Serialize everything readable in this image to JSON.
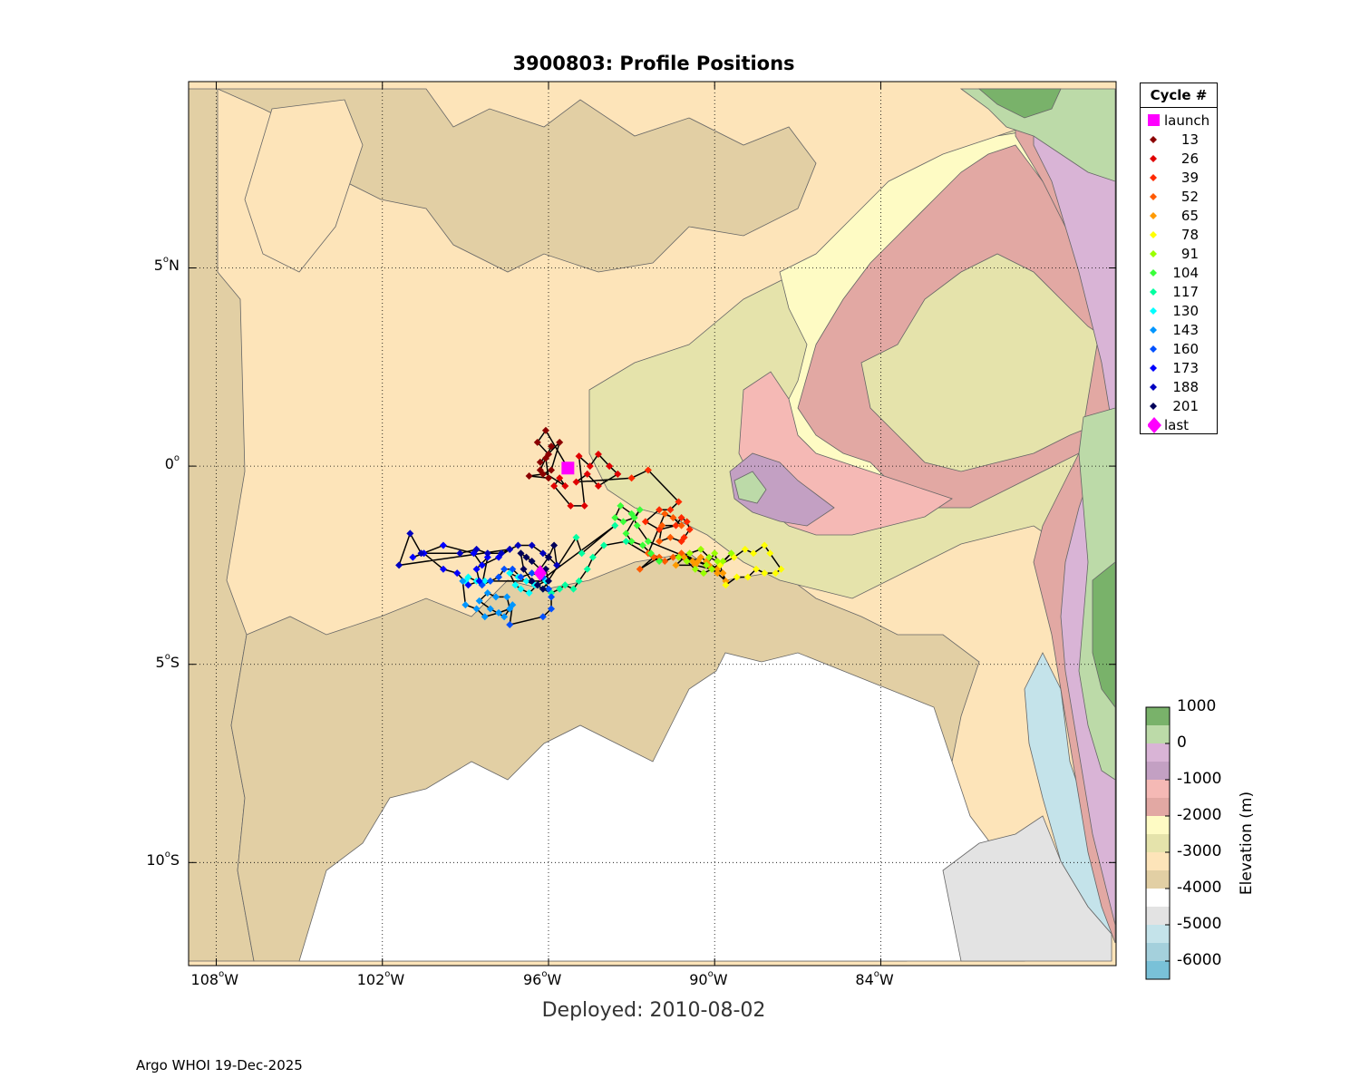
{
  "title": "3900803: Profile Positions",
  "xlabel": "Deployed: 2010-08-02",
  "footer": "Argo WHOI 19-Dec-2025",
  "axes": {
    "lon_range": [
      -109,
      -75.5
    ],
    "lat_range": [
      -12.6,
      9.7
    ],
    "x_ticks": [
      {
        "value": -108,
        "deg": "108",
        "hemi": "W"
      },
      {
        "value": -102,
        "deg": "102",
        "hemi": "W"
      },
      {
        "value": -96,
        "deg": "96",
        "hemi": "W"
      },
      {
        "value": -90,
        "deg": "90",
        "hemi": "W"
      },
      {
        "value": -84,
        "deg": "84",
        "hemi": "W"
      }
    ],
    "y_ticks": [
      {
        "value": 5,
        "deg": "5",
        "hemi": "N"
      },
      {
        "value": 0,
        "deg": "0",
        "hemi": ""
      },
      {
        "value": -5,
        "deg": "5",
        "hemi": "S"
      },
      {
        "value": -10,
        "deg": "10",
        "hemi": "S"
      }
    ],
    "grid": "dotted"
  },
  "legend": {
    "title": "Cycle #",
    "launch_label": "launch",
    "last_label": "last",
    "launch_color": "#ff00ff",
    "last_color": "#ff00ff",
    "cycles": [
      {
        "label": "13",
        "color": "#8b0000"
      },
      {
        "label": "26",
        "color": "#e00000"
      },
      {
        "label": "39",
        "color": "#ff2a00"
      },
      {
        "label": "52",
        "color": "#ff5a00"
      },
      {
        "label": "65",
        "color": "#ff9a00"
      },
      {
        "label": "78",
        "color": "#ffff00"
      },
      {
        "label": "91",
        "color": "#9aff00"
      },
      {
        "label": "104",
        "color": "#3aff3a"
      },
      {
        "label": "117",
        "color": "#00ffa0"
      },
      {
        "label": "130",
        "color": "#00ffff"
      },
      {
        "label": "143",
        "color": "#0096ff"
      },
      {
        "label": "160",
        "color": "#0050ff"
      },
      {
        "label": "173",
        "color": "#0000ff"
      },
      {
        "label": "188",
        "color": "#0000c0"
      },
      {
        "label": "201",
        "color": "#00005a"
      }
    ]
  },
  "colorbar": {
    "label": "Elevation (m)",
    "tick_labels": [
      "1000",
      "0",
      "-1000",
      "-2000",
      "-3000",
      "-4000",
      "-5000",
      "-6000"
    ],
    "levels": [
      {
        "from": 500,
        "to": 1000,
        "color": "#79b26a"
      },
      {
        "from": 0,
        "to": 500,
        "color": "#bcdaa8"
      },
      {
        "from": -500,
        "to": 0,
        "color": "#d9b4d6"
      },
      {
        "from": -1000,
        "to": -500,
        "color": "#c3a0c3"
      },
      {
        "from": -1500,
        "to": -1000,
        "color": "#f5b9b5"
      },
      {
        "from": -2000,
        "to": -1500,
        "color": "#e2a8a3"
      },
      {
        "from": -2500,
        "to": -2000,
        "color": "#fefbc4"
      },
      {
        "from": -3000,
        "to": -2500,
        "color": "#e5e3ab"
      },
      {
        "from": -3500,
        "to": -3000,
        "color": "#fde4b9"
      },
      {
        "from": -4000,
        "to": -3500,
        "color": "#e2cfa4"
      },
      {
        "from": -4500,
        "to": -4000,
        "color": "#ffffff"
      },
      {
        "from": -5000,
        "to": -4500,
        "color": "#e3e3e3"
      },
      {
        "from": -5500,
        "to": -5000,
        "color": "#c4e3ea"
      },
      {
        "from": -6000,
        "to": -5500,
        "color": "#a4d0dc"
      },
      {
        "from": -6500,
        "to": -6000,
        "color": "#79c1d8"
      }
    ]
  },
  "launch": {
    "lon": -95.3,
    "lat": -0.05
  },
  "last": {
    "lon": -96.3,
    "lat": -2.7
  },
  "track_color": "#000000",
  "chart_data": {
    "type": "scatter",
    "title": "3900803: Profile Positions",
    "xlabel": "Deployed: 2010-08-02",
    "ylabel": "",
    "xlim": [
      -109,
      -75.5
    ],
    "ylim": [
      -12.6,
      9.7
    ],
    "series": [
      {
        "name": "13",
        "points": [
          [
            -95.3,
            -0.05
          ],
          [
            -96.1,
            0.9
          ],
          [
            -96.4,
            0.6
          ],
          [
            -96.0,
            0.3
          ],
          [
            -96.3,
            0.1
          ],
          [
            -95.6,
            0.6
          ],
          [
            -95.9,
            -0.1
          ],
          [
            -96.2,
            -0.2
          ],
          [
            -96.7,
            -0.25
          ],
          [
            -96.0,
            -0.3
          ],
          [
            -96.1,
            0.2
          ],
          [
            -95.9,
            0.5
          ],
          [
            -96.3,
            -0.1
          ]
        ]
      },
      {
        "name": "26",
        "points": [
          [
            -95.4,
            -0.5
          ],
          [
            -95.6,
            -0.3
          ],
          [
            -95.8,
            -0.5
          ],
          [
            -95.2,
            -1.0
          ],
          [
            -94.7,
            -1.0
          ],
          [
            -94.9,
            0.25
          ],
          [
            -94.5,
            0.0
          ],
          [
            -94.2,
            0.3
          ],
          [
            -93.8,
            0.0
          ],
          [
            -93.5,
            -0.2
          ],
          [
            -94.2,
            -0.5
          ],
          [
            -94.6,
            -0.2
          ],
          [
            -95.0,
            -0.4
          ]
        ]
      },
      {
        "name": "39",
        "points": [
          [
            -93.0,
            -0.3
          ],
          [
            -92.4,
            -0.1
          ],
          [
            -91.3,
            -0.9
          ],
          [
            -91.6,
            -1.1
          ],
          [
            -92.0,
            -1.1
          ],
          [
            -92.5,
            -1.4
          ],
          [
            -92.0,
            -1.6
          ],
          [
            -91.4,
            -1.5
          ],
          [
            -91.2,
            -1.3
          ],
          [
            -91.0,
            -1.4
          ],
          [
            -90.9,
            -1.6
          ],
          [
            -91.1,
            -1.8
          ],
          [
            -91.2,
            -1.9
          ]
        ]
      },
      {
        "name": "52",
        "points": [
          [
            -91.6,
            -1.8
          ],
          [
            -92.0,
            -1.9
          ],
          [
            -91.9,
            -1.5
          ],
          [
            -91.2,
            -1.5
          ],
          [
            -91.5,
            -1.3
          ],
          [
            -91.8,
            -1.2
          ],
          [
            -92.4,
            -2.2
          ],
          [
            -92.0,
            -2.3
          ],
          [
            -92.7,
            -2.6
          ],
          [
            -92.2,
            -2.3
          ],
          [
            -91.8,
            -2.4
          ],
          [
            -91.5,
            -2.3
          ],
          [
            -91.2,
            -2.2
          ]
        ]
      },
      {
        "name": "65",
        "points": [
          [
            -90.6,
            -2.4
          ],
          [
            -90.2,
            -2.5
          ],
          [
            -89.9,
            -2.7
          ],
          [
            -89.6,
            -2.9
          ],
          [
            -89.7,
            -2.7
          ],
          [
            -89.9,
            -2.6
          ],
          [
            -90.3,
            -2.4
          ],
          [
            -90.5,
            -2.3
          ],
          [
            -90.8,
            -2.4
          ],
          [
            -91.1,
            -2.3
          ],
          [
            -91.4,
            -2.5
          ],
          [
            -90.7,
            -2.5
          ],
          [
            -90.1,
            -2.6
          ]
        ]
      },
      {
        "name": "78",
        "points": [
          [
            -89.3,
            -2.3
          ],
          [
            -88.9,
            -2.1
          ],
          [
            -88.6,
            -2.2
          ],
          [
            -88.2,
            -2.0
          ],
          [
            -88.0,
            -2.2
          ],
          [
            -87.6,
            -2.6
          ],
          [
            -87.8,
            -2.7
          ],
          [
            -88.2,
            -2.7
          ],
          [
            -88.5,
            -2.6
          ],
          [
            -88.8,
            -2.8
          ],
          [
            -89.2,
            -2.8
          ],
          [
            -89.6,
            -3.0
          ],
          [
            -89.8,
            -2.5
          ]
        ]
      },
      {
        "name": "91",
        "points": [
          [
            -89.4,
            -2.2
          ],
          [
            -89.7,
            -2.4
          ],
          [
            -90.1,
            -2.6
          ],
          [
            -90.4,
            -2.7
          ],
          [
            -90.7,
            -2.6
          ],
          [
            -91.0,
            -2.4
          ],
          [
            -91.3,
            -2.3
          ],
          [
            -90.9,
            -2.2
          ],
          [
            -90.5,
            -2.1
          ],
          [
            -90.2,
            -2.3
          ],
          [
            -89.9,
            -2.4
          ],
          [
            -90.0,
            -2.2
          ],
          [
            -90.3,
            -2.5
          ]
        ]
      },
      {
        "name": "104",
        "points": [
          [
            -92.4,
            -1.9
          ],
          [
            -92.8,
            -1.5
          ],
          [
            -93.0,
            -1.2
          ],
          [
            -93.4,
            -1.0
          ],
          [
            -93.6,
            -1.3
          ],
          [
            -93.3,
            -1.4
          ],
          [
            -92.9,
            -1.3
          ],
          [
            -92.7,
            -1.1
          ],
          [
            -93.2,
            -1.7
          ],
          [
            -93.0,
            -1.9
          ],
          [
            -92.6,
            -2.0
          ],
          [
            -92.3,
            -2.2
          ],
          [
            -92.0,
            -2.4
          ]
        ]
      },
      {
        "name": "117",
        "points": [
          [
            -93.2,
            -1.9
          ],
          [
            -94.0,
            -2.0
          ],
          [
            -94.4,
            -2.3
          ],
          [
            -94.6,
            -2.6
          ],
          [
            -94.9,
            -2.9
          ],
          [
            -95.1,
            -3.1
          ],
          [
            -95.4,
            -3.0
          ],
          [
            -95.6,
            -3.1
          ],
          [
            -95.9,
            -3.2
          ],
          [
            -96.2,
            -3.1
          ],
          [
            -95.0,
            -1.8
          ],
          [
            -94.8,
            -2.2
          ],
          [
            -93.6,
            -1.5
          ]
        ]
      },
      {
        "name": "130",
        "points": [
          [
            -96.5,
            -3.0
          ],
          [
            -96.8,
            -2.9
          ],
          [
            -97.1,
            -2.8
          ],
          [
            -97.4,
            -2.7
          ],
          [
            -97.2,
            -3.0
          ],
          [
            -97.0,
            -3.1
          ],
          [
            -96.7,
            -3.2
          ],
          [
            -96.4,
            -3.0
          ],
          [
            -96.1,
            -2.9
          ],
          [
            -98.3,
            -2.9
          ],
          [
            -98.6,
            -2.9
          ],
          [
            -98.9,
            -2.8
          ],
          [
            -99.0,
            -2.9
          ]
        ]
      },
      {
        "name": "143",
        "points": [
          [
            -99.1,
            -2.9
          ],
          [
            -99.0,
            -3.5
          ],
          [
            -98.6,
            -3.6
          ],
          [
            -98.3,
            -3.8
          ],
          [
            -97.8,
            -3.7
          ],
          [
            -97.4,
            -3.6
          ],
          [
            -97.5,
            -3.3
          ],
          [
            -97.9,
            -3.3
          ],
          [
            -98.2,
            -3.2
          ],
          [
            -98.5,
            -3.4
          ],
          [
            -98.1,
            -3.6
          ],
          [
            -97.6,
            -3.8
          ],
          [
            -97.3,
            -3.5
          ]
        ]
      },
      {
        "name": "160",
        "points": [
          [
            -97.4,
            -4.0
          ],
          [
            -96.2,
            -3.8
          ],
          [
            -95.9,
            -3.6
          ],
          [
            -95.9,
            -3.3
          ],
          [
            -96.0,
            -3.1
          ],
          [
            -96.2,
            -2.8
          ],
          [
            -96.6,
            -2.7
          ],
          [
            -97.0,
            -2.8
          ],
          [
            -97.3,
            -2.6
          ],
          [
            -97.6,
            -2.6
          ],
          [
            -97.8,
            -2.8
          ],
          [
            -98.1,
            -2.9
          ],
          [
            -98.4,
            -3.0
          ]
        ]
      },
      {
        "name": "173",
        "points": [
          [
            -98.2,
            -2.3
          ],
          [
            -98.6,
            -2.6
          ],
          [
            -98.5,
            -2.9
          ],
          [
            -98.9,
            -3.0
          ],
          [
            -99.3,
            -2.7
          ],
          [
            -99.8,
            -2.6
          ],
          [
            -100.5,
            -2.2
          ],
          [
            -100.9,
            -2.3
          ],
          [
            -99.8,
            -2.0
          ],
          [
            -98.7,
            -2.2
          ],
          [
            -98.4,
            -2.5
          ],
          [
            -97.8,
            -2.3
          ],
          [
            -97.4,
            -2.1
          ]
        ]
      },
      {
        "name": "188",
        "points": [
          [
            -101.4,
            -2.5
          ],
          [
            -101.0,
            -1.7
          ],
          [
            -100.6,
            -2.2
          ],
          [
            -99.2,
            -2.2
          ],
          [
            -98.6,
            -2.1
          ],
          [
            -98.2,
            -2.2
          ],
          [
            -97.7,
            -2.2
          ],
          [
            -97.4,
            -2.1
          ],
          [
            -97.1,
            -2.0
          ],
          [
            -96.6,
            -2.0
          ],
          [
            -96.2,
            -2.2
          ],
          [
            -96.0,
            -2.3
          ],
          [
            -95.7,
            -2.5
          ]
        ]
      },
      {
        "name": "201",
        "points": [
          [
            -95.8,
            -2.0
          ],
          [
            -96.0,
            -2.3
          ],
          [
            -96.3,
            -2.6
          ],
          [
            -96.6,
            -2.4
          ],
          [
            -96.8,
            -2.3
          ],
          [
            -97.0,
            -2.2
          ],
          [
            -96.9,
            -2.6
          ],
          [
            -96.6,
            -2.9
          ],
          [
            -96.4,
            -3.0
          ],
          [
            -96.2,
            -3.1
          ],
          [
            -96.0,
            -2.9
          ],
          [
            -96.1,
            -2.6
          ],
          [
            -96.3,
            -2.7
          ]
        ]
      }
    ]
  }
}
